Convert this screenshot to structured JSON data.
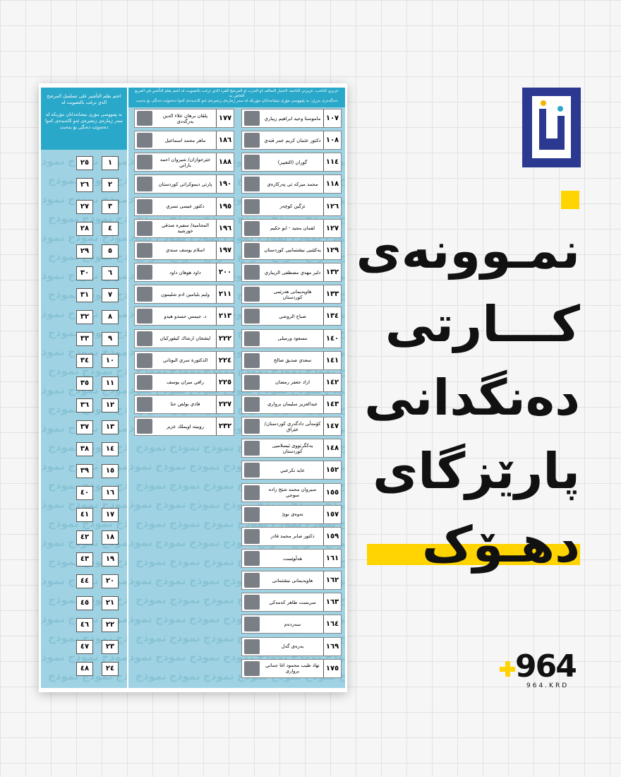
{
  "ballot": {
    "header_ar": "عزيزي الناخب، عزيزتي الناخبة، لاختيار التحالف او الحزب او المرشح الفرد الذي ترغب بالتصويت له اختم بقلم التأشير في المربع الخاص به",
    "header_ku": "دەنگدەری بەڕێز: بە پێنووسی مۆری نیشانەدانان مۆربکە لە سەر ژمارەی زنجیرەی ئەو کاندیدەی کەوا دەتەوێت دەنگی بۆ بدەیت",
    "side_header_ar": "اختم بقلم التأشير على تسلسل المرشح الذي ترغب بالتصويت له",
    "side_header_ku": "بە پێنووسی مۆری نیشانەدانان مۆربکە لە سەر ژمارەی زنجیرەی ئەو کاندیدەی کەوا دەتەوێت دەنگی بۆ بدەیت",
    "watermark": "نموذج",
    "sequence_right": [
      "١",
      "٢",
      "٣",
      "٤",
      "٥",
      "٦",
      "٧",
      "٨",
      "٩",
      "١٠",
      "١١",
      "١٢",
      "١٣",
      "١٤",
      "١٥",
      "١٦",
      "١٧",
      "١٨",
      "١٩",
      "٢٠",
      "٢١",
      "٢٢",
      "٢٣",
      "٢٤"
    ],
    "sequence_left": [
      "٢٥",
      "٢٦",
      "٢٧",
      "٢٨",
      "٢٩",
      "٣٠",
      "٣١",
      "٣٢",
      "٣٣",
      "٣٤",
      "٣٥",
      "٣٦",
      "٣٧",
      "٣٨",
      "٣٩",
      "٤٠",
      "٤١",
      "٤٢",
      "٤٣",
      "٤٤",
      "٤٥",
      "٤٦",
      "٤٧",
      "٤٨"
    ],
    "column_middle": [
      {
        "number": "١٧٧",
        "name": "پلڤان برهان علاء الدين بەرگەدی"
      },
      {
        "number": "١٨٦",
        "name": "ماهر محمد اسماعيل"
      },
      {
        "number": "١٨٨",
        "name": "خێرخوازان/ شيروان احمد باراني"
      },
      {
        "number": "١٩٠",
        "name": "پارتی دیموکراتی کوردستان"
      },
      {
        "number": "١٩٥",
        "name": "دكتور عيسى نسري"
      },
      {
        "number": "١٩٦",
        "name": "المحامية/ سفيره صدقي خورشيد"
      },
      {
        "number": "١٩٧",
        "name": "اسلام يوسف سندي"
      },
      {
        "number": "٢٠٠",
        "name": "داود هوهان داود"
      },
      {
        "number": "٢١١",
        "name": "وليم بليامين ادم شليمون"
      },
      {
        "number": "٢١٣",
        "name": "د. جيمس حسدو هيدو"
      },
      {
        "number": "٢٢٢",
        "name": "ايشخان ارشاك كيڤوركيان"
      },
      {
        "number": "٢٢٤",
        "name": "الدكتورة سري البوتاني"
      },
      {
        "number": "٢٢٥",
        "name": "رافي ميران يوسف"
      },
      {
        "number": "٢٢٧",
        "name": "فادي بولص حنا"
      },
      {
        "number": "٢٣٢",
        "name": "روبينه اويملك عزيز"
      }
    ],
    "column_right": [
      {
        "number": "١٠٧",
        "name": "ماموستا وحيد ابراهيم زيباري"
      },
      {
        "number": "١٠٨",
        "name": "دكتور عثمان كريم عمر قندي"
      },
      {
        "number": "١١٤",
        "name": "گوران (التغيير)"
      },
      {
        "number": "١١٨",
        "name": "محمد میرکه تی پەرکارەی"
      },
      {
        "number": "١٢٦",
        "name": "تژگین کوچەر"
      },
      {
        "number": "١٢٧",
        "name": "لقمان مجيد - ابو حكيم"
      },
      {
        "number": "١٢٩",
        "name": "یەکێتیی نیشتمانیی کوردستان"
      },
      {
        "number": "١٣٢",
        "name": "دلير مهدي مصطفى الزيباري"
      },
      {
        "number": "١٣٣",
        "name": "هاوپەیمانی هەرێمی کوردستان"
      },
      {
        "number": "١٣٤",
        "name": "صباح الزوشي"
      },
      {
        "number": "١٤٠",
        "name": "مسعود ورمیلی"
      },
      {
        "number": "١٤١",
        "name": "سعدي صديق صالح"
      },
      {
        "number": "١٤٢",
        "name": "ازاد جعفر رمضان"
      },
      {
        "number": "١٤٣",
        "name": "عبدالعزيز سليمان بروارى"
      },
      {
        "number": "١٤٧",
        "name": "کۆمەڵی دادگەری کوردستان/عێراق"
      },
      {
        "number": "١٤٨",
        "name": "یەکگرتووی ئیسلامیی کوردستان"
      },
      {
        "number": "١٥٢",
        "name": "عايد نكرعبي"
      },
      {
        "number": "١٥٥",
        "name": "سيروان محمد شێخ زاده سوجي"
      },
      {
        "number": "١٥٧",
        "name": "نەوەی نوێ"
      },
      {
        "number": "١٥٩",
        "name": "دكتور صابر محمد قادر"
      },
      {
        "number": "١٦١",
        "name": "هەڵوێست"
      },
      {
        "number": "١٦٢",
        "name": "هاوپەیمانی نیشتمانی"
      },
      {
        "number": "١٦٣",
        "name": "سربست طاهر كەمەكی"
      },
      {
        "number": "١٦٤",
        "name": "سەردەم"
      },
      {
        "number": "١٦٩",
        "name": "بەرەی گەل"
      },
      {
        "number": "١٧٥",
        "name": "نهاد طيب محمود اغا جماني بروارى"
      }
    ]
  },
  "title": {
    "lines": [
      "نمـوونەی",
      "کـــارتی",
      "دەنگدانی",
      "پارێزگای",
      "دهـۆک"
    ]
  },
  "brand": {
    "logo": "964",
    "site": "964.KRD"
  }
}
